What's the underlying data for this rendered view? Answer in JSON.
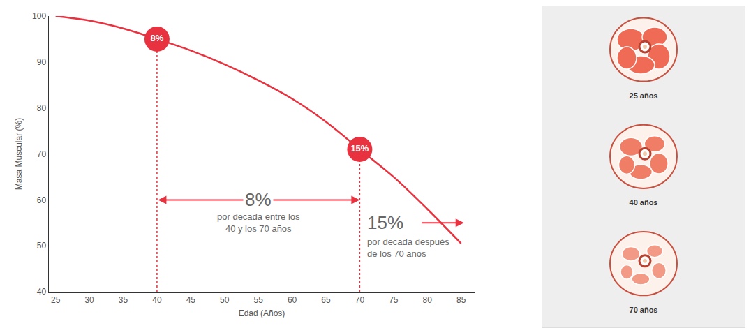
{
  "chart_data": {
    "type": "line",
    "x": [
      25,
      30,
      35,
      40,
      45,
      50,
      55,
      60,
      65,
      70,
      75,
      80,
      85
    ],
    "values": [
      100,
      99,
      97.3,
      95,
      92.5,
      89.5,
      86,
      82,
      77,
      71,
      65,
      58,
      50.5
    ],
    "color": "#e8323f",
    "xlabel": "Edad (Años)",
    "ylabel": "Masa Muscular (%)",
    "xlim": [
      24,
      87
    ],
    "ylim": [
      40,
      100
    ],
    "xticks": [
      25,
      30,
      35,
      40,
      45,
      50,
      55,
      60,
      65,
      70,
      75,
      80,
      85
    ],
    "yticks": [
      40,
      50,
      60,
      70,
      80,
      90,
      100
    ],
    "grid": false,
    "marker": "circle",
    "highlights": [
      {
        "x": 40,
        "y": 95,
        "label": "8%"
      },
      {
        "x": 70,
        "y": 71,
        "label": "15%"
      }
    ],
    "annotations": [
      {
        "text": "8%",
        "lines": [
          "por decada entre los",
          "40 y los 70 años"
        ]
      },
      {
        "text": "15%",
        "lines": [
          "por decada después",
          "de los 70 años"
        ]
      }
    ]
  },
  "panel": {
    "images": [
      {
        "label": "25 años"
      },
      {
        "label": "40 años"
      },
      {
        "label": "70 años"
      }
    ]
  }
}
